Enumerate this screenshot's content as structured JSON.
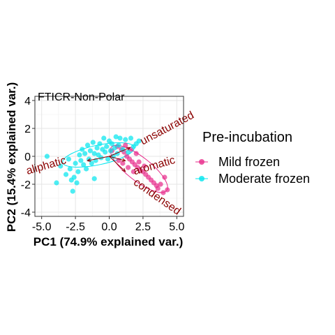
{
  "chart_data": {
    "type": "scatter",
    "title": "FTICR-Non-Polar",
    "xlabel": "PC1 (74.9% explained var.)",
    "ylabel": "PC2 (15.4% explained var.)",
    "xlim": [
      -5.5,
      5.5
    ],
    "ylim": [
      -4.3,
      4.3
    ],
    "xticks": [
      -5.0,
      -2.5,
      0.0,
      2.5,
      5.0
    ],
    "xtick_labels": [
      "-5.0",
      "-2.5",
      "0.0",
      "2.5",
      "5.0"
    ],
    "yticks": [
      -4,
      -2,
      0,
      2,
      4
    ],
    "ytick_labels": [
      "-4",
      "-2",
      "0",
      "2",
      "4"
    ],
    "grid": true,
    "legend": {
      "title": "Pre-incubation",
      "position": "right"
    },
    "series": [
      {
        "name": "Mild frozen",
        "color": "#e7298a",
        "points": [
          [
            0.6,
            0.7
          ],
          [
            0.9,
            0.5
          ],
          [
            1.1,
            0.3
          ],
          [
            1.3,
            0.0
          ],
          [
            1.5,
            -0.2
          ],
          [
            1.7,
            -0.4
          ],
          [
            1.9,
            -0.6
          ],
          [
            2.1,
            -0.8
          ],
          [
            2.3,
            -1.0
          ],
          [
            2.5,
            -1.1
          ],
          [
            2.7,
            -1.3
          ],
          [
            2.9,
            -1.5
          ],
          [
            3.1,
            -1.7
          ],
          [
            3.3,
            -1.9
          ],
          [
            3.5,
            -2.1
          ],
          [
            3.8,
            -2.0
          ],
          [
            4.1,
            -1.5
          ],
          [
            4.3,
            -2.4
          ],
          [
            4.0,
            -2.6
          ],
          [
            3.6,
            -2.3
          ],
          [
            1.2,
            0.8
          ],
          [
            1.6,
            0.5
          ],
          [
            2.0,
            0.2
          ],
          [
            1.0,
            -0.5
          ],
          [
            0.7,
            -0.3
          ],
          [
            1.4,
            -0.8
          ],
          [
            1.8,
            -1.1
          ],
          [
            2.2,
            -0.4
          ],
          [
            2.6,
            -0.7
          ],
          [
            0.2,
            0.4
          ]
        ]
      },
      {
        "name": "Moderate frozen",
        "color": "#00e5ee",
        "points": [
          [
            -4.6,
            0.0
          ],
          [
            -3.9,
            -1.9
          ],
          [
            -3.6,
            -0.7
          ],
          [
            -3.2,
            -1.3
          ],
          [
            -2.9,
            -0.9
          ],
          [
            -2.8,
            -1.7
          ],
          [
            -2.6,
            -1.5
          ],
          [
            -2.7,
            -2.5
          ],
          [
            -2.5,
            -0.5
          ],
          [
            -2.3,
            -1.1
          ],
          [
            -2.2,
            0.1
          ],
          [
            -2.1,
            -0.3
          ],
          [
            -2.0,
            0.5
          ],
          [
            -1.9,
            -0.6
          ],
          [
            -1.8,
            0.2
          ],
          [
            -1.7,
            -0.9
          ],
          [
            -1.6,
            0.8
          ],
          [
            -1.5,
            -0.2
          ],
          [
            -1.4,
            0.4
          ],
          [
            -1.3,
            -0.5
          ],
          [
            -1.2,
            1.0
          ],
          [
            -1.1,
            0.2
          ],
          [
            -1.0,
            -0.3
          ],
          [
            -0.9,
            0.6
          ],
          [
            -0.8,
            0.1
          ],
          [
            -0.7,
            0.9
          ],
          [
            -0.6,
            -0.1
          ],
          [
            -0.5,
            0.5
          ],
          [
            -0.4,
            1.3
          ],
          [
            -0.3,
            0.3
          ],
          [
            -0.2,
            0.7
          ],
          [
            -0.1,
            -0.2
          ],
          [
            0.0,
            1.1
          ],
          [
            0.1,
            0.4
          ],
          [
            0.2,
            0.9
          ],
          [
            0.3,
            0.0
          ],
          [
            0.4,
            0.6
          ],
          [
            0.5,
            1.4
          ],
          [
            0.6,
            0.2
          ],
          [
            0.7,
            0.8
          ],
          [
            0.8,
            1.3
          ],
          [
            1.0,
            0.5
          ],
          [
            1.2,
            1.2
          ],
          [
            1.4,
            0.3
          ],
          [
            1.6,
            1.3
          ],
          [
            1.8,
            0.7
          ],
          [
            2.0,
            0.9
          ],
          [
            2.2,
            1.1
          ],
          [
            -3.0,
            -0.2
          ],
          [
            -2.4,
            -1.9
          ],
          [
            -1.1,
            -1.6
          ]
        ]
      }
    ],
    "ellipses": [
      {
        "series": "Mild frozen",
        "color": "#e7298a",
        "center": [
          2.2,
          -0.9
        ],
        "rx": 2.6,
        "ry": 0.85,
        "angle_deg": -38
      },
      {
        "series": "Moderate frozen",
        "color": "#00e5ee",
        "center": [
          -0.8,
          0.1
        ],
        "rx": 2.7,
        "ry": 0.7,
        "angle_deg": 12
      }
    ],
    "loadings": [
      {
        "label": "unsaturated",
        "x": 4.4,
        "y": 1.8,
        "label_angle_deg": -28
      },
      {
        "label": "aliphatic",
        "x": -4.6,
        "y": -0.9,
        "label_angle_deg": -16
      },
      {
        "label": "aromatic",
        "x": 3.4,
        "y": -0.9,
        "label_angle_deg": -16
      },
      {
        "label": "condensed",
        "x": 3.4,
        "y": -3.1,
        "label_angle_deg": 35
      }
    ]
  }
}
